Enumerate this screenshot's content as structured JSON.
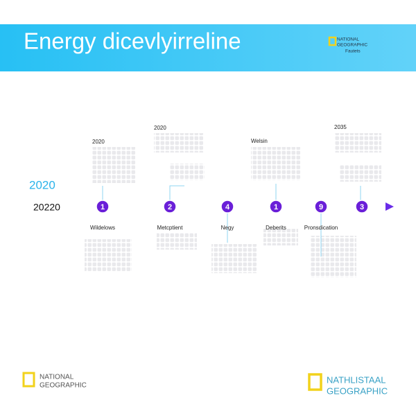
{
  "header": {
    "title": "Energy dicevlyirreline",
    "logo": [
      "NATIONAL",
      "GEOGRAPHIC",
      "Fautets"
    ]
  },
  "timeline": {
    "start_labels": [
      "2020",
      "20220"
    ],
    "labels_above": [
      "2020",
      "2020",
      "Welsin",
      "2035"
    ],
    "nodes": [
      {
        "number": "1",
        "label": "Wildelows"
      },
      {
        "number": "2",
        "label": "Metcptient"
      },
      {
        "number": "4",
        "label": "Negy"
      },
      {
        "number": "1",
        "label": "Deberits"
      },
      {
        "number": "9",
        "label": "Pronsdication"
      },
      {
        "number": "3",
        "label": ""
      }
    ]
  },
  "footer": {
    "left_logo": [
      "NATIONAL",
      "GEOGRAPHIC"
    ],
    "right_logo": [
      "NATHLISTAAL",
      "GEOGRAPHIC"
    ]
  }
}
